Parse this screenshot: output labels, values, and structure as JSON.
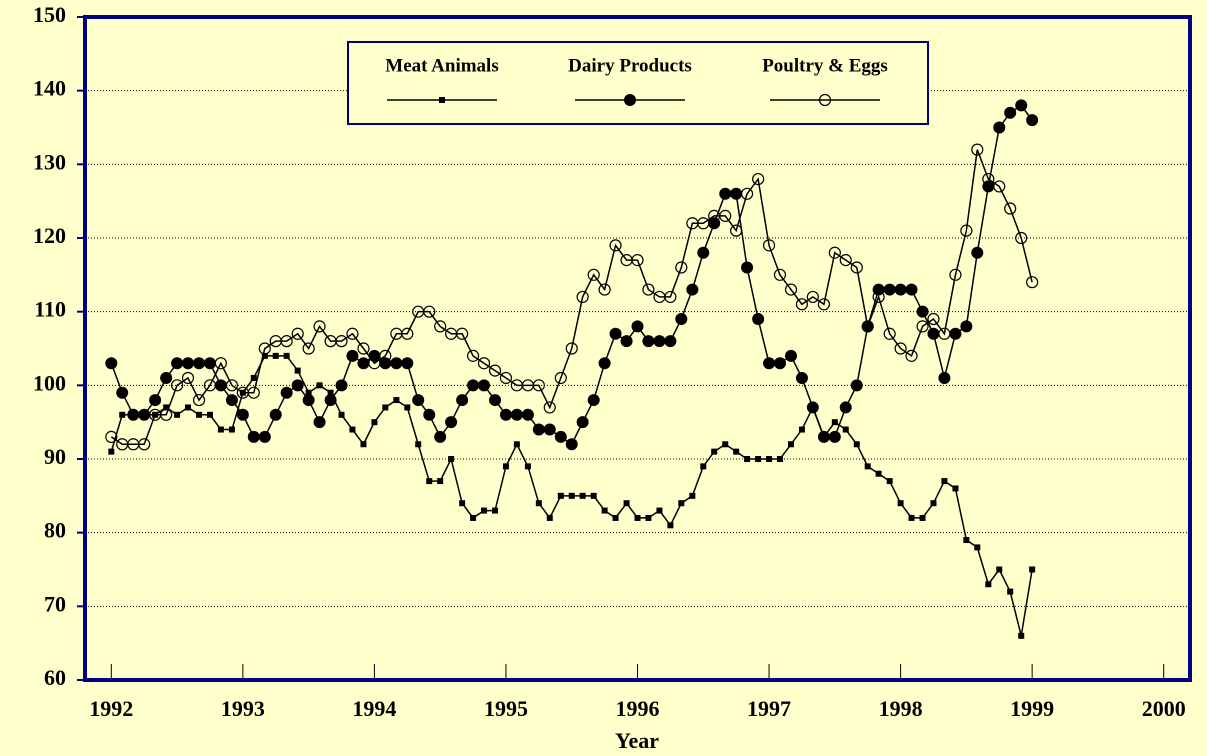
{
  "chart_data": {
    "type": "line",
    "x_label": "Year",
    "x": [
      1992,
      1992.083,
      1992.167,
      1992.25,
      1992.333,
      1992.417,
      1992.5,
      1992.583,
      1992.667,
      1992.75,
      1992.833,
      1992.917,
      1993,
      1993.083,
      1993.167,
      1993.25,
      1993.333,
      1993.417,
      1993.5,
      1993.583,
      1993.667,
      1993.75,
      1993.833,
      1993.917,
      1994,
      1994.083,
      1994.167,
      1994.25,
      1994.333,
      1994.417,
      1994.5,
      1994.583,
      1994.667,
      1994.75,
      1994.833,
      1994.917,
      1995,
      1995.083,
      1995.167,
      1995.25,
      1995.333,
      1995.417,
      1995.5,
      1995.583,
      1995.667,
      1995.75,
      1995.833,
      1995.917,
      1996,
      1996.083,
      1996.167,
      1996.25,
      1996.333,
      1996.417,
      1996.5,
      1996.583,
      1996.667,
      1996.75,
      1996.833,
      1996.917,
      1997,
      1997.083,
      1997.167,
      1997.25,
      1997.333,
      1997.417,
      1997.5,
      1997.583,
      1997.667,
      1997.75,
      1997.833,
      1997.917,
      1998,
      1998.083,
      1998.167,
      1998.25,
      1998.333,
      1998.417,
      1998.5,
      1998.583,
      1998.667,
      1998.75,
      1998.833,
      1998.917,
      1999
    ],
    "series": [
      {
        "name": "Meat Animals",
        "color": "#000000",
        "marker": "square",
        "values": [
          91,
          96,
          96,
          96,
          96,
          97,
          96,
          97,
          96,
          96,
          94,
          94,
          99,
          101,
          104,
          104,
          104,
          102,
          99,
          100,
          99,
          96,
          94,
          92,
          95,
          97,
          98,
          97,
          92,
          87,
          87,
          90,
          84,
          82,
          83,
          83,
          89,
          92,
          89,
          84,
          82,
          85,
          85,
          85,
          85,
          83,
          82,
          84,
          82,
          82,
          83,
          81,
          84,
          85,
          89,
          91,
          92,
          91,
          90,
          90,
          90,
          90,
          92,
          94,
          97,
          93,
          95,
          94,
          92,
          89,
          88,
          87,
          84,
          82,
          82,
          84,
          87,
          86,
          79,
          78,
          73,
          75,
          72,
          66,
          75
        ]
      },
      {
        "name": "Dairy Products",
        "color": "#000000",
        "marker": "filled-circle",
        "values": [
          103,
          99,
          96,
          96,
          98,
          101,
          103,
          103,
          103,
          103,
          100,
          98,
          96,
          93,
          93,
          96,
          99,
          100,
          98,
          95,
          98,
          100,
          104,
          103,
          104,
          103,
          103,
          103,
          98,
          96,
          93,
          95,
          98,
          100,
          100,
          98,
          96,
          96,
          96,
          94,
          94,
          93,
          92,
          95,
          98,
          103,
          107,
          106,
          108,
          106,
          106,
          106,
          109,
          113,
          118,
          122,
          126,
          126,
          116,
          109,
          103,
          103,
          104,
          101,
          97,
          93,
          93,
          97,
          100,
          108,
          113,
          113,
          113,
          113,
          110,
          107,
          101,
          107,
          108,
          118,
          127,
          135,
          137,
          138,
          136
        ]
      },
      {
        "name": "Poultry & Eggs",
        "color": "#000000",
        "marker": "open-circle",
        "values": [
          93,
          92,
          92,
          92,
          96,
          96,
          100,
          101,
          98,
          100,
          103,
          100,
          99,
          99,
          105,
          106,
          106,
          107,
          105,
          108,
          106,
          106,
          107,
          105,
          103,
          104,
          107,
          107,
          110,
          110,
          108,
          107,
          107,
          104,
          103,
          102,
          101,
          100,
          100,
          100,
          97,
          101,
          105,
          112,
          115,
          113,
          119,
          117,
          117,
          113,
          112,
          112,
          116,
          122,
          122,
          123,
          123,
          121,
          126,
          128,
          119,
          115,
          113,
          111,
          112,
          111,
          118,
          117,
          116,
          108,
          112,
          107,
          105,
          104,
          108,
          109,
          107,
          115,
          121,
          132,
          128,
          127,
          124,
          120,
          114
        ]
      }
    ],
    "xlim": [
      1991.8,
      2000.2
    ],
    "xticks": [
      1992,
      1993,
      1994,
      1995,
      1996,
      1997,
      1998,
      1999,
      2000
    ],
    "ylim": [
      60,
      150
    ],
    "yticks": [
      60,
      70,
      80,
      90,
      100,
      110,
      120,
      130,
      140,
      150
    ],
    "grid": true,
    "legend": "top",
    "background": "#ffffcc",
    "frame_color": "#000080"
  }
}
